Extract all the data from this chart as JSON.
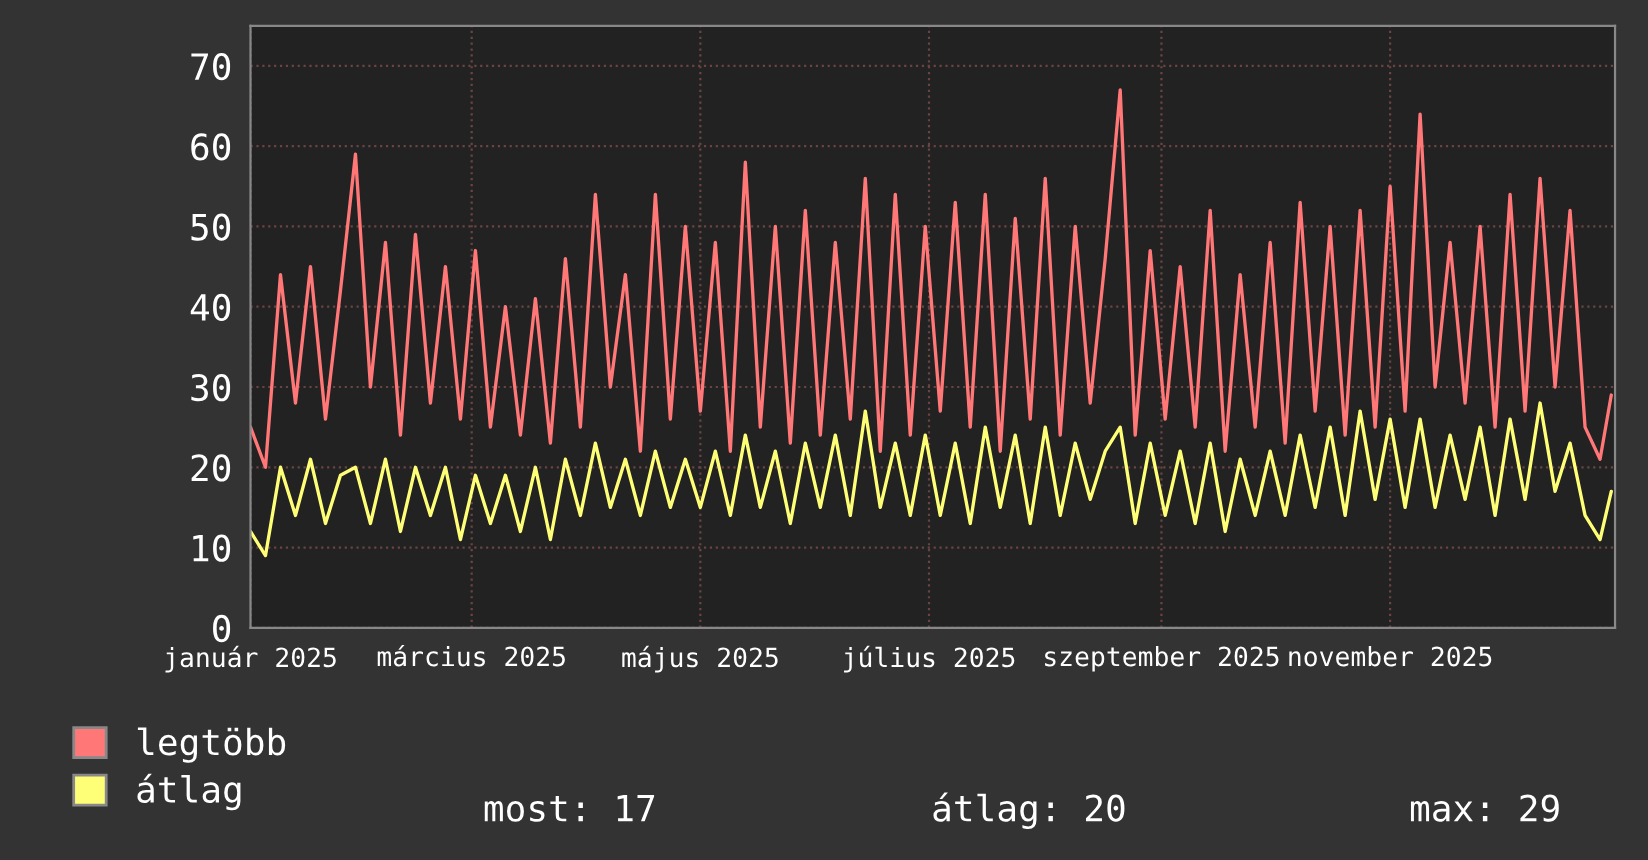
{
  "chart_data": {
    "type": "line",
    "x": [
      "2025-01-01",
      "2025-01-05",
      "2025-01-09",
      "2025-01-13",
      "2025-01-17",
      "2025-01-21",
      "2025-01-25",
      "2025-01-29",
      "2025-02-02",
      "2025-02-06",
      "2025-02-10",
      "2025-02-14",
      "2025-02-18",
      "2025-02-22",
      "2025-02-26",
      "2025-03-02",
      "2025-03-06",
      "2025-03-10",
      "2025-03-14",
      "2025-03-18",
      "2025-03-22",
      "2025-03-26",
      "2025-03-30",
      "2025-04-03",
      "2025-04-07",
      "2025-04-11",
      "2025-04-15",
      "2025-04-19",
      "2025-04-23",
      "2025-04-27",
      "2025-05-01",
      "2025-05-05",
      "2025-05-09",
      "2025-05-13",
      "2025-05-17",
      "2025-05-21",
      "2025-05-25",
      "2025-05-29",
      "2025-06-02",
      "2025-06-06",
      "2025-06-10",
      "2025-06-14",
      "2025-06-18",
      "2025-06-22",
      "2025-06-26",
      "2025-06-30",
      "2025-07-04",
      "2025-07-08",
      "2025-07-12",
      "2025-07-16",
      "2025-07-20",
      "2025-07-24",
      "2025-07-28",
      "2025-08-01",
      "2025-08-05",
      "2025-08-09",
      "2025-08-13",
      "2025-08-17",
      "2025-08-21",
      "2025-08-25",
      "2025-08-29",
      "2025-09-02",
      "2025-09-06",
      "2025-09-10",
      "2025-09-14",
      "2025-09-18",
      "2025-09-22",
      "2025-09-26",
      "2025-09-30",
      "2025-10-04",
      "2025-10-08",
      "2025-10-12",
      "2025-10-16",
      "2025-10-20",
      "2025-10-24",
      "2025-10-28",
      "2025-11-01",
      "2025-11-05",
      "2025-11-09",
      "2025-11-13",
      "2025-11-17",
      "2025-11-21",
      "2025-11-25",
      "2025-11-29",
      "2025-12-03",
      "2025-12-07",
      "2025-12-11",
      "2025-12-15",
      "2025-12-19",
      "2025-12-23",
      "2025-12-27",
      "2025-12-30"
    ],
    "series": [
      {
        "name": "legtöbb",
        "color": "#ff7777",
        "values": [
          25,
          20,
          44,
          28,
          45,
          26,
          42,
          59,
          30,
          48,
          24,
          49,
          28,
          45,
          26,
          47,
          25,
          40,
          24,
          41,
          23,
          46,
          25,
          54,
          30,
          44,
          22,
          54,
          26,
          50,
          27,
          48,
          22,
          58,
          25,
          50,
          23,
          52,
          24,
          48,
          26,
          56,
          22,
          54,
          24,
          50,
          27,
          53,
          25,
          54,
          22,
          51,
          26,
          56,
          24,
          50,
          28,
          46,
          67,
          24,
          47,
          26,
          45,
          25,
          52,
          22,
          44,
          25,
          48,
          23,
          53,
          27,
          50,
          24,
          52,
          25,
          55,
          27,
          64,
          30,
          48,
          28,
          50,
          25,
          54,
          27,
          56,
          30,
          52,
          25,
          21,
          29
        ]
      },
      {
        "name": "átlag",
        "color": "#ffff77",
        "values": [
          12,
          9,
          20,
          14,
          21,
          13,
          19,
          20,
          13,
          21,
          12,
          20,
          14,
          20,
          11,
          19,
          13,
          19,
          12,
          20,
          11,
          21,
          14,
          23,
          15,
          21,
          14,
          22,
          15,
          21,
          15,
          22,
          14,
          24,
          15,
          22,
          13,
          23,
          15,
          24,
          14,
          27,
          15,
          23,
          14,
          24,
          14,
          23,
          13,
          25,
          15,
          24,
          13,
          25,
          14,
          23,
          16,
          22,
          25,
          13,
          23,
          14,
          22,
          13,
          23,
          12,
          21,
          14,
          22,
          14,
          24,
          15,
          25,
          14,
          27,
          16,
          26,
          15,
          26,
          15,
          24,
          16,
          25,
          14,
          26,
          16,
          28,
          17,
          23,
          14,
          11,
          17
        ]
      }
    ],
    "xlim": [
      "2025-01-01",
      "2025-12-31"
    ],
    "xticks": [
      {
        "value": "2025-01-01",
        "label": "január 2025"
      },
      {
        "value": "2025-03-01",
        "label": "március 2025"
      },
      {
        "value": "2025-05-01",
        "label": "május 2025"
      },
      {
        "value": "2025-07-01",
        "label": "július 2025"
      },
      {
        "value": "2025-09-01",
        "label": "szeptember 2025"
      },
      {
        "value": "2025-11-01",
        "label": "november 2025"
      }
    ],
    "ylim": [
      0,
      75
    ],
    "yticks": [
      0,
      10,
      20,
      30,
      40,
      50,
      60,
      70
    ],
    "grid": true,
    "legend": "bottom left",
    "annotations": [
      "most: 17",
      "átlag: 20",
      "max: 29"
    ]
  }
}
